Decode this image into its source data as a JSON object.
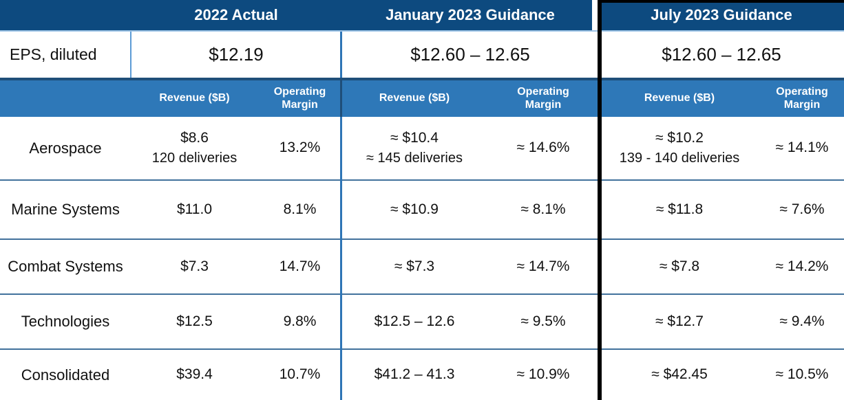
{
  "table": {
    "columns": [
      {
        "header": "2022 Actual"
      },
      {
        "header": "January 2023 Guidance"
      },
      {
        "header": "July 2023 Guidance"
      }
    ],
    "subheaders": {
      "revenue": "Revenue ($B)",
      "margin": "Operating Margin"
    },
    "eps": {
      "label": "EPS, diluted",
      "values": [
        "$12.19",
        "$12.60 – 12.65",
        "$12.60 – 12.65"
      ]
    },
    "rows": [
      {
        "label": "Aerospace",
        "cells": [
          {
            "revenue": "$8.6",
            "revenue_note": "120 deliveries",
            "margin": "13.2%"
          },
          {
            "revenue": "≈ $10.4",
            "revenue_note": "≈ 145 deliveries",
            "margin": "≈ 14.6%"
          },
          {
            "revenue": "≈ $10.2",
            "revenue_note": "139 - 140 deliveries",
            "margin": "≈ 14.1%"
          }
        ]
      },
      {
        "label": "Marine Systems",
        "cells": [
          {
            "revenue": "$11.0",
            "margin": "8.1%"
          },
          {
            "revenue": "≈ $10.9",
            "margin": "≈ 8.1%"
          },
          {
            "revenue": "≈ $11.8",
            "margin": "≈ 7.6%"
          }
        ]
      },
      {
        "label": "Combat Systems",
        "cells": [
          {
            "revenue": "$7.3",
            "margin": "14.7%"
          },
          {
            "revenue": "≈ $7.3",
            "margin": "≈ 14.7%"
          },
          {
            "revenue": "≈ $7.8",
            "margin": "≈ 14.2%"
          }
        ]
      },
      {
        "label": "Technologies",
        "cells": [
          {
            "revenue": "$12.5",
            "margin": "9.8%"
          },
          {
            "revenue": "$12.5 – 12.6",
            "margin": "≈ 9.5%"
          },
          {
            "revenue": "≈ $12.7",
            "margin": "≈ 9.4%"
          }
        ]
      },
      {
        "label": "Consolidated",
        "cells": [
          {
            "revenue": "$39.4",
            "margin": "10.7%"
          },
          {
            "revenue": "$41.2 – 41.3",
            "margin": "≈ 10.9%"
          },
          {
            "revenue": "≈ $42.45",
            "margin": "≈ 10.5%"
          }
        ]
      }
    ],
    "colors": {
      "header_navy": "#0D4A7F",
      "subheader_blue": "#2E78B8",
      "row_divider_blue": "#41719C",
      "dark_border_blue": "#1F4E79",
      "light_border_blue": "#9DC3E6",
      "section_frame_black": "#000000"
    }
  },
  "chart_data": {
    "type": "table",
    "column_groups": [
      "2022 Actual",
      "January 2023 Guidance",
      "July 2023 Guidance"
    ],
    "sub_columns": [
      "Revenue ($B)",
      "Operating Margin"
    ],
    "eps_diluted": [
      "$12.19",
      "$12.60 – 12.65",
      "$12.60 – 12.65"
    ],
    "rows": [
      [
        "Aerospace",
        "$8.6 / 120 deliveries",
        "13.2%",
        "≈ $10.4 / ≈ 145 deliveries",
        "≈ 14.6%",
        "≈ $10.2 / 139 - 140 deliveries",
        "≈ 14.1%"
      ],
      [
        "Marine Systems",
        "$11.0",
        "8.1%",
        "≈ $10.9",
        "≈ 8.1%",
        "≈ $11.8",
        "≈ 7.6%"
      ],
      [
        "Combat Systems",
        "$7.3",
        "14.7%",
        "≈ $7.3",
        "≈ 14.7%",
        "≈ $7.8",
        "≈ 14.2%"
      ],
      [
        "Technologies",
        "$12.5",
        "9.8%",
        "$12.5 – 12.6",
        "≈ 9.5%",
        "≈ $12.7",
        "≈ 9.4%"
      ],
      [
        "Consolidated",
        "$39.4",
        "10.7%",
        "$41.2 – 41.3",
        "≈ 10.9%",
        "≈ $42.45",
        "≈ 10.5%"
      ]
    ]
  }
}
